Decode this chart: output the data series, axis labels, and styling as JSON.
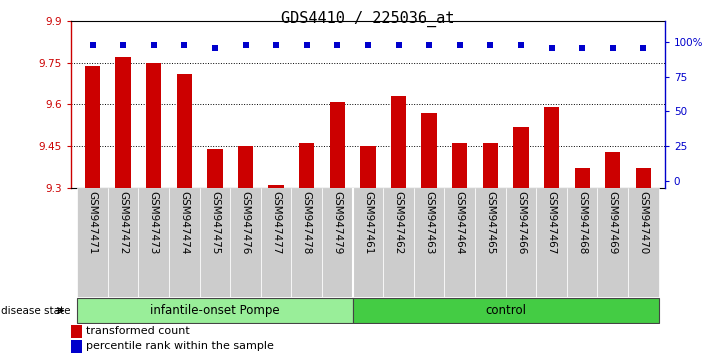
{
  "title": "GDS4410 / 225036_at",
  "samples": [
    "GSM947471",
    "GSM947472",
    "GSM947473",
    "GSM947474",
    "GSM947475",
    "GSM947476",
    "GSM947477",
    "GSM947478",
    "GSM947479",
    "GSM947461",
    "GSM947462",
    "GSM947463",
    "GSM947464",
    "GSM947465",
    "GSM947466",
    "GSM947467",
    "GSM947468",
    "GSM947469",
    "GSM947470"
  ],
  "red_values": [
    9.74,
    9.77,
    9.75,
    9.71,
    9.44,
    9.45,
    9.31,
    9.46,
    9.61,
    9.45,
    9.63,
    9.57,
    9.46,
    9.46,
    9.52,
    9.59,
    9.37,
    9.43,
    9.37
  ],
  "blue_values": [
    98,
    98,
    98,
    98,
    96,
    98,
    98,
    98,
    98,
    98,
    98,
    98,
    98,
    98,
    98,
    96,
    96,
    96,
    96
  ],
  "y_min": 9.3,
  "y_max": 9.9,
  "y_ticks": [
    9.3,
    9.45,
    9.6,
    9.75,
    9.9
  ],
  "y2_ticks": [
    0,
    25,
    50,
    75,
    100
  ],
  "bar_color": "#cc0000",
  "dot_color": "#0000cc",
  "group1_label": "infantile-onset Pompe",
  "group2_label": "control",
  "group1_color": "#99ee99",
  "group2_color": "#44cc44",
  "group1_count": 9,
  "group2_count": 10,
  "disease_state_label": "disease state",
  "legend_red": "transformed count",
  "legend_blue": "percentile rank within the sample",
  "tick_bg_color": "#cccccc",
  "title_fontsize": 11,
  "tick_fontsize": 7.5
}
